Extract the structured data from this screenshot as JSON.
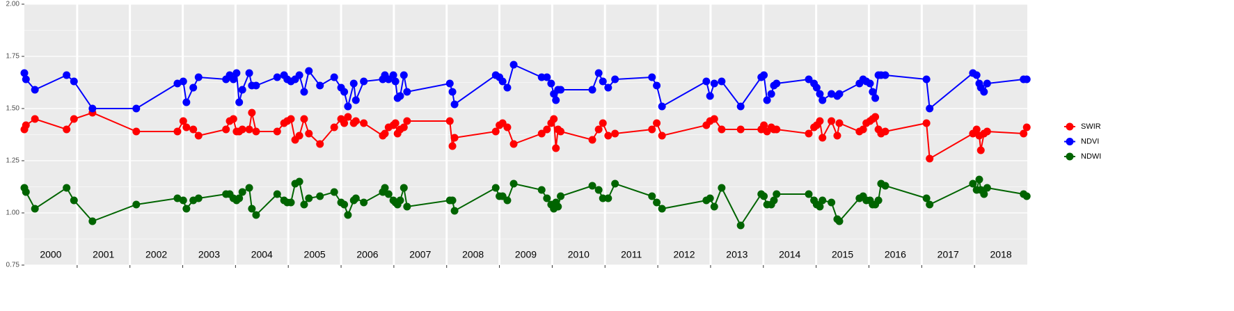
{
  "chart_data": {
    "type": "line",
    "x": [
      2000.0,
      2000.03,
      2000.2,
      2000.8,
      2000.94,
      2001.29,
      2002.12,
      2002.9,
      2003.01,
      2003.07,
      2003.2,
      2003.3,
      2003.82,
      2003.89,
      2003.96,
      2004.02,
      2004.07,
      2004.13,
      2004.26,
      2004.31,
      2004.39,
      2004.79,
      2004.92,
      2004.98,
      2005.05,
      2005.13,
      2005.21,
      2005.3,
      2005.39,
      2005.6,
      2005.87,
      2006.0,
      2006.06,
      2006.13,
      2006.24,
      2006.28,
      2006.43,
      2006.79,
      2006.83,
      2006.9,
      2006.99,
      2007.03,
      2007.07,
      2007.12,
      2007.19,
      2007.25,
      2008.06,
      2008.11,
      2008.15,
      2008.93,
      2009.0,
      2009.06,
      2009.15,
      2009.27,
      2009.8,
      2009.9,
      2009.98,
      2010.03,
      2010.07,
      2010.11,
      2010.16,
      2010.76,
      2010.88,
      2010.96,
      2011.06,
      2011.19,
      2011.89,
      2011.98,
      2012.08,
      2012.92,
      2012.99,
      2013.07,
      2013.21,
      2013.57,
      2013.96,
      2014.01,
      2014.07,
      2014.15,
      2014.2,
      2014.25,
      2014.86,
      2014.96,
      2015.01,
      2015.07,
      2015.12,
      2015.29,
      2015.4,
      2015.44,
      2015.82,
      2015.89,
      2015.95,
      2016.02,
      2016.07,
      2016.12,
      2016.18,
      2016.23,
      2016.31,
      2017.09,
      2017.15,
      2017.97,
      2018.04,
      2018.09,
      2018.12,
      2018.18,
      2018.24,
      2018.93,
      2018.99
    ],
    "series": [
      {
        "name": "SWIR",
        "color": "#ff0000",
        "values": [
          1.4,
          1.42,
          1.45,
          1.4,
          1.45,
          1.48,
          1.39,
          1.39,
          1.44,
          1.41,
          1.4,
          1.37,
          1.4,
          1.44,
          1.45,
          1.39,
          1.39,
          1.4,
          1.4,
          1.48,
          1.39,
          1.39,
          1.43,
          1.44,
          1.45,
          1.35,
          1.37,
          1.45,
          1.38,
          1.33,
          1.41,
          1.45,
          1.43,
          1.46,
          1.43,
          1.44,
          1.43,
          1.37,
          1.38,
          1.41,
          1.42,
          1.43,
          1.38,
          1.4,
          1.41,
          1.44,
          1.44,
          1.32,
          1.36,
          1.39,
          1.42,
          1.43,
          1.41,
          1.33,
          1.38,
          1.4,
          1.43,
          1.45,
          1.31,
          1.4,
          1.39,
          1.35,
          1.4,
          1.43,
          1.37,
          1.38,
          1.4,
          1.43,
          1.37,
          1.42,
          1.44,
          1.45,
          1.4,
          1.4,
          1.4,
          1.42,
          1.39,
          1.41,
          1.4,
          1.4,
          1.38,
          1.41,
          1.42,
          1.44,
          1.36,
          1.44,
          1.37,
          1.43,
          1.39,
          1.4,
          1.43,
          1.44,
          1.45,
          1.46,
          1.4,
          1.38,
          1.39,
          1.43,
          1.26,
          1.38,
          1.4,
          1.37,
          1.3,
          1.38,
          1.39,
          1.38,
          1.41
        ]
      },
      {
        "name": "NDVI",
        "color": "#0000ff",
        "values": [
          1.67,
          1.64,
          1.59,
          1.66,
          1.63,
          1.5,
          1.5,
          1.62,
          1.63,
          1.53,
          1.6,
          1.65,
          1.64,
          1.66,
          1.64,
          1.67,
          1.53,
          1.59,
          1.67,
          1.61,
          1.61,
          1.65,
          1.66,
          1.64,
          1.63,
          1.64,
          1.66,
          1.58,
          1.68,
          1.61,
          1.65,
          1.6,
          1.58,
          1.51,
          1.62,
          1.54,
          1.63,
          1.64,
          1.66,
          1.64,
          1.66,
          1.63,
          1.55,
          1.56,
          1.66,
          1.58,
          1.62,
          1.58,
          1.52,
          1.66,
          1.65,
          1.63,
          1.6,
          1.71,
          1.65,
          1.65,
          1.62,
          1.57,
          1.54,
          1.59,
          1.59,
          1.59,
          1.67,
          1.63,
          1.6,
          1.64,
          1.65,
          1.61,
          1.51,
          1.63,
          1.56,
          1.62,
          1.63,
          1.51,
          1.65,
          1.66,
          1.54,
          1.57,
          1.61,
          1.62,
          1.64,
          1.62,
          1.6,
          1.57,
          1.54,
          1.57,
          1.56,
          1.57,
          1.62,
          1.64,
          1.63,
          1.62,
          1.58,
          1.55,
          1.66,
          1.66,
          1.66,
          1.64,
          1.5,
          1.67,
          1.66,
          1.62,
          1.6,
          1.58,
          1.62,
          1.64,
          1.64
        ]
      },
      {
        "name": "NDWI",
        "color": "#006400",
        "values": [
          1.12,
          1.1,
          1.02,
          1.12,
          1.06,
          0.96,
          1.04,
          1.07,
          1.06,
          1.02,
          1.06,
          1.07,
          1.09,
          1.09,
          1.07,
          1.06,
          1.07,
          1.1,
          1.12,
          1.02,
          0.99,
          1.09,
          1.06,
          1.05,
          1.05,
          1.14,
          1.15,
          1.04,
          1.07,
          1.08,
          1.1,
          1.05,
          1.04,
          0.99,
          1.06,
          1.07,
          1.05,
          1.1,
          1.12,
          1.09,
          1.06,
          1.05,
          1.04,
          1.06,
          1.12,
          1.03,
          1.06,
          1.06,
          1.01,
          1.12,
          1.08,
          1.08,
          1.06,
          1.14,
          1.11,
          1.07,
          1.04,
          1.02,
          1.05,
          1.03,
          1.08,
          1.13,
          1.11,
          1.07,
          1.07,
          1.14,
          1.08,
          1.05,
          1.02,
          1.06,
          1.07,
          1.03,
          1.12,
          0.94,
          1.09,
          1.08,
          1.04,
          1.04,
          1.06,
          1.09,
          1.09,
          1.06,
          1.04,
          1.03,
          1.06,
          1.05,
          0.97,
          0.96,
          1.07,
          1.08,
          1.06,
          1.06,
          1.04,
          1.04,
          1.06,
          1.14,
          1.13,
          1.07,
          1.04,
          1.14,
          1.11,
          1.16,
          1.11,
          1.09,
          1.12,
          1.09,
          1.08
        ]
      }
    ],
    "xlim": [
      2000,
      2019
    ],
    "xticks": [
      {
        "value": 2000.5,
        "label": "2000"
      },
      {
        "value": 2001.5,
        "label": "2001"
      },
      {
        "value": 2002.5,
        "label": "2002"
      },
      {
        "value": 2003.5,
        "label": "2003"
      },
      {
        "value": 2004.5,
        "label": "2004"
      },
      {
        "value": 2005.5,
        "label": "2005"
      },
      {
        "value": 2006.5,
        "label": "2006"
      },
      {
        "value": 2007.5,
        "label": "2007"
      },
      {
        "value": 2008.5,
        "label": "2008"
      },
      {
        "value": 2009.5,
        "label": "2009"
      },
      {
        "value": 2010.5,
        "label": "2010"
      },
      {
        "value": 2011.5,
        "label": "2011"
      },
      {
        "value": 2012.5,
        "label": "2012"
      },
      {
        "value": 2013.5,
        "label": "2013"
      },
      {
        "value": 2014.5,
        "label": "2014"
      },
      {
        "value": 2015.5,
        "label": "2015"
      },
      {
        "value": 2016.5,
        "label": "2016"
      },
      {
        "value": 2017.5,
        "label": "2017"
      },
      {
        "value": 2018.5,
        "label": "2018"
      }
    ],
    "ylim": [
      0.75,
      2.0
    ],
    "yticks": [
      {
        "value": 0.75,
        "label": "0.75"
      },
      {
        "value": 1.0,
        "label": "1.00"
      },
      {
        "value": 1.25,
        "label": "1.25"
      },
      {
        "value": 1.5,
        "label": "1.50"
      },
      {
        "value": 1.75,
        "label": "1.75"
      },
      {
        "value": 2.0,
        "label": "2.00"
      }
    ],
    "grid": true,
    "legend": "right"
  }
}
